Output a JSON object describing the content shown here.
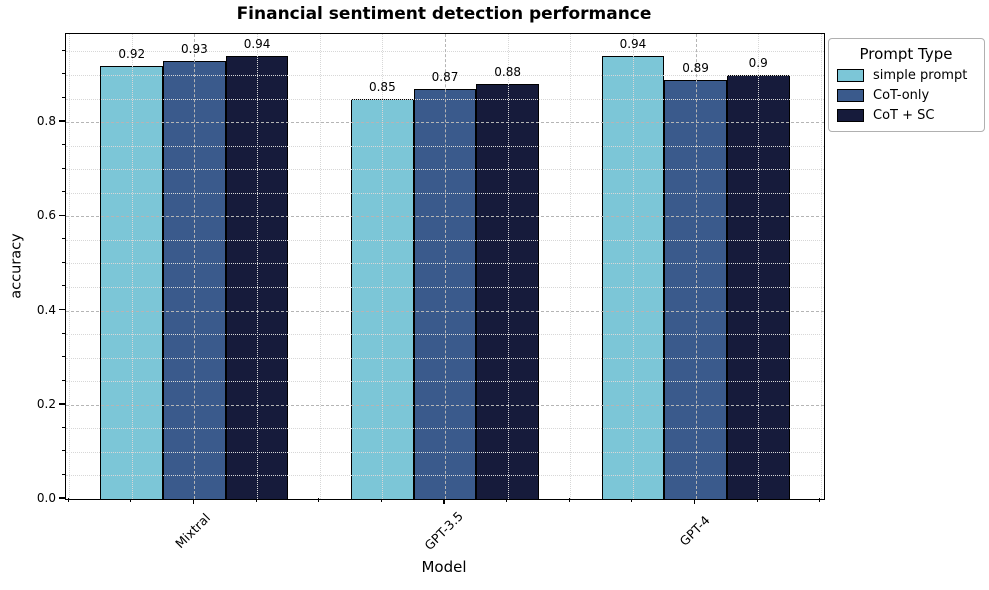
{
  "chart_data": {
    "type": "bar",
    "title": "Financial sentiment detection performance",
    "xlabel": "Model",
    "ylabel": "accuracy",
    "categories": [
      "Mixtral",
      "GPT-3.5",
      "GPT-4"
    ],
    "series": [
      {
        "name": "simple prompt",
        "color": "#7CC6D7",
        "values": [
          0.92,
          0.85,
          0.94
        ]
      },
      {
        "name": "CoT-only",
        "color": "#3A5A8C",
        "values": [
          0.93,
          0.87,
          0.89
        ]
      },
      {
        "name": "CoT + SC",
        "color": "#161B3B",
        "values": [
          0.94,
          0.88,
          0.9
        ]
      }
    ],
    "bar_value_labels": [
      [
        "0.92",
        "0.93",
        "0.94"
      ],
      [
        "0.85",
        "0.87",
        "0.88"
      ],
      [
        "0.94",
        "0.89",
        "0.9"
      ]
    ],
    "legend": {
      "title": "Prompt Type",
      "position": "upper right, outside plot"
    },
    "ylim": [
      0,
      0.987
    ],
    "yticks": [
      0,
      0.2,
      0.4,
      0.6,
      0.8
    ],
    "ytick_labels": [
      "0.0",
      "0.2",
      "0.4",
      "0.6",
      "0.8"
    ],
    "y_minor_step": 0.05,
    "x_minor_step": 0.25,
    "grid": "major dashed + minor dotted, drawn above bars",
    "bar_edge_color": "#000000"
  }
}
